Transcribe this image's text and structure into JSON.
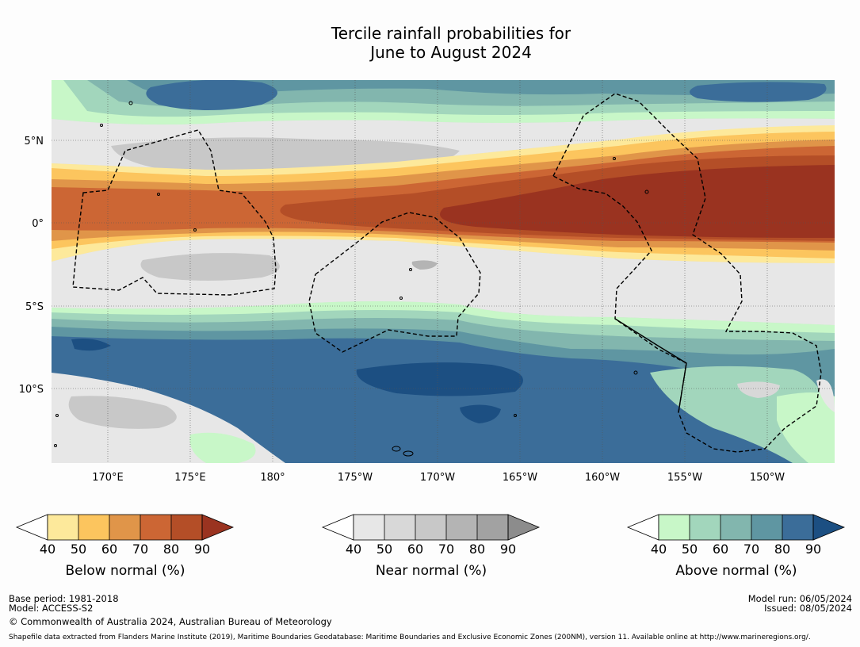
{
  "title": {
    "line1": "Tercile rainfall probabilities for",
    "line2": "June to August 2024"
  },
  "map": {
    "lon_labels": [
      "170°E",
      "175°E",
      "180°",
      "175°W",
      "170°W",
      "165°W",
      "160°W",
      "155°W",
      "150°W"
    ],
    "lat_labels": [
      "5°N",
      "0°",
      "5°S",
      "10°S"
    ],
    "colors": {
      "below": [
        "#fde99b",
        "#fcc55e",
        "#e09549",
        "#cc6634",
        "#b44e27",
        "#9a3320"
      ],
      "near": [
        "#e7e7e7",
        "#d8d8d8",
        "#c8c8c8",
        "#b4b4b4",
        "#a2a2a2",
        "#8c8c8c"
      ],
      "above": [
        "#c8f7c8",
        "#a2d6bc",
        "#82b6ae",
        "#5f96a2",
        "#3b6d99",
        "#1c4f82"
      ]
    }
  },
  "colorbars": [
    {
      "label": "Below normal (%)",
      "ticks": [
        "40",
        "50",
        "60",
        "70",
        "80",
        "90"
      ]
    },
    {
      "label": "Near normal (%)",
      "ticks": [
        "40",
        "50",
        "60",
        "70",
        "80",
        "90"
      ]
    },
    {
      "label": "Above normal (%)",
      "ticks": [
        "40",
        "50",
        "60",
        "70",
        "80",
        "90"
      ]
    }
  ],
  "footer": {
    "base_period": "Base period: 1981-2018",
    "model": "Model: ACCESS-S2",
    "copyright": "© Commonwealth of Australia 2024, Australian Bureau of Meteorology",
    "model_run": "Model run: 06/05/2024",
    "issued": "Issued: 08/05/2024",
    "shapefile": "Shapefile data extracted from Flanders Marine Institute (2019), Maritime Boundaries Geodatabase: Maritime Boundaries and Exclusive Economic Zones (200NM), version 11. Available online at http://www.marineregions.org/."
  }
}
